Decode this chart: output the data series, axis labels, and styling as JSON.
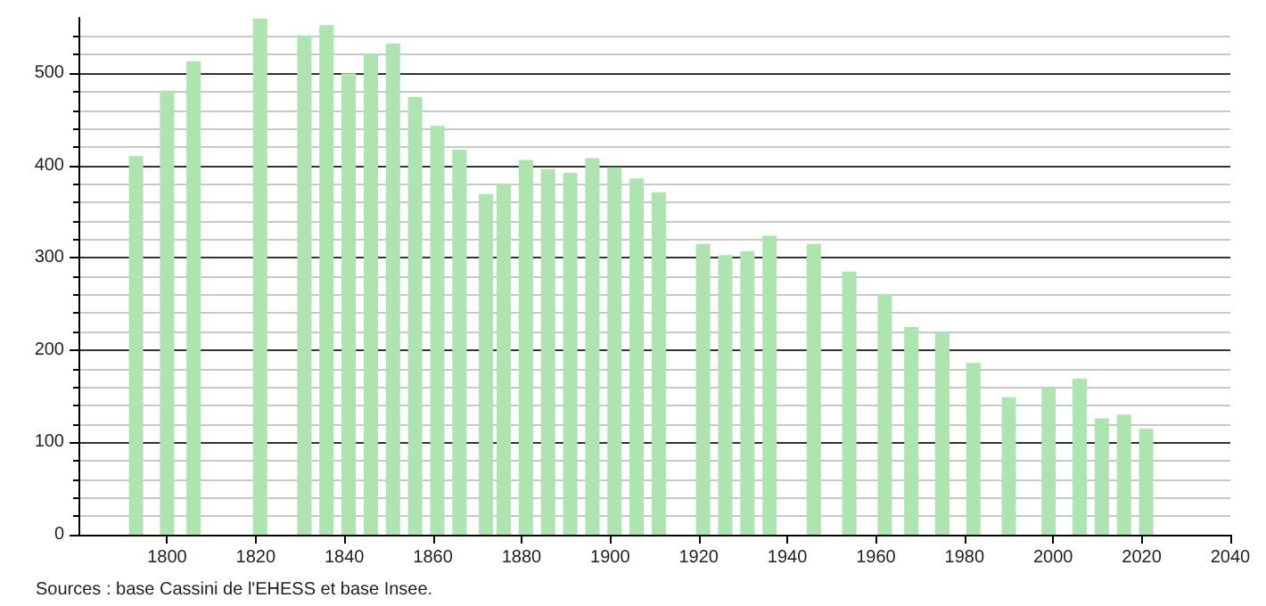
{
  "chart_data": {
    "type": "bar",
    "x": [
      1793,
      1800,
      1806,
      1821,
      1831,
      1836,
      1841,
      1846,
      1851,
      1856,
      1861,
      1866,
      1872,
      1876,
      1881,
      1886,
      1891,
      1896,
      1901,
      1906,
      1911,
      1921,
      1926,
      1931,
      1936,
      1946,
      1954,
      1962,
      1968,
      1975,
      1982,
      1990,
      1999,
      2006,
      2011,
      2016,
      2021
    ],
    "values": [
      410,
      481,
      513,
      559,
      541,
      552,
      500,
      521,
      532,
      474,
      443,
      417,
      369,
      380,
      406,
      396,
      392,
      408,
      398,
      386,
      371,
      315,
      303,
      307,
      324,
      315,
      285,
      260,
      225,
      219,
      186,
      149,
      159,
      169,
      126,
      130,
      115
    ],
    "color": "#ade4b0",
    "xlim": [
      1780,
      2040
    ],
    "xticks": [
      1800,
      1820,
      1840,
      1860,
      1880,
      1900,
      1920,
      1940,
      1960,
      1980,
      2000,
      2020,
      2040
    ],
    "ylim": [
      0,
      560
    ],
    "yticks": [
      0,
      100,
      200,
      300,
      400,
      500
    ],
    "grid": "y",
    "annotations": [
      "Sources : base Cassini de l'EHESS et base Insee."
    ]
  }
}
